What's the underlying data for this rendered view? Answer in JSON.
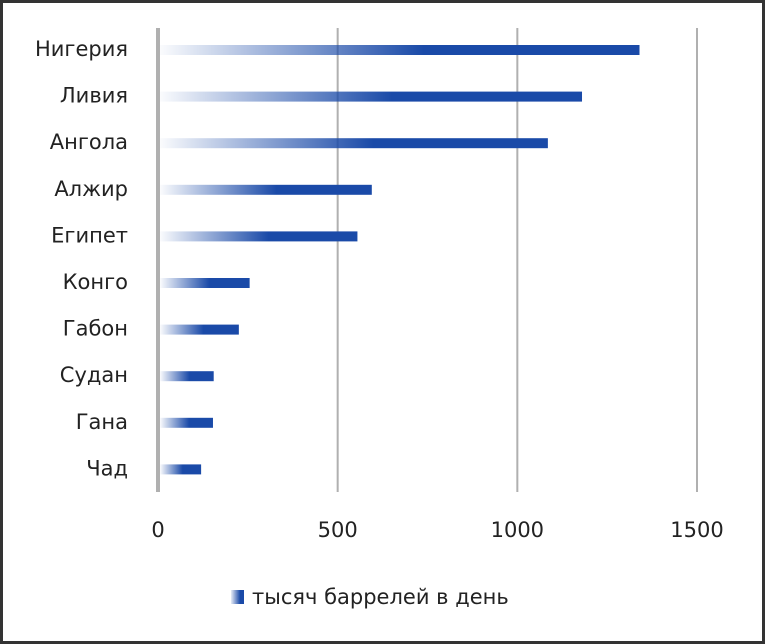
{
  "chart_data": {
    "type": "bar",
    "orientation": "horizontal",
    "categories": [
      "Нигерия",
      "Ливия",
      "Ангола",
      "Алжир",
      "Египет",
      "Конго",
      "Габон",
      "Судан",
      "Гана",
      "Чад"
    ],
    "series": [
      {
        "name": "тысяч баррелей в день",
        "color": "#1a4aa8",
        "values": [
          1340,
          1180,
          1085,
          595,
          555,
          255,
          225,
          155,
          153,
          120
        ]
      }
    ],
    "xlim": [
      0,
      1500
    ],
    "xticks": [
      0,
      500,
      1000,
      1500
    ],
    "grid": true,
    "legend": "bottom"
  }
}
